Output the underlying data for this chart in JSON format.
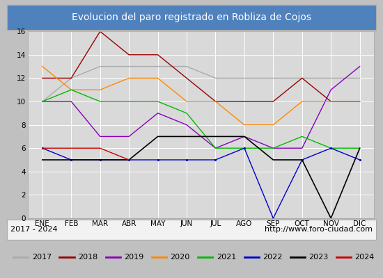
{
  "title": "Evolucion del paro registrado en Robliza de Cojos",
  "subtitle_left": "2017 - 2024",
  "subtitle_right": "http://www.foro-ciudad.com",
  "months": [
    "ENE",
    "FEB",
    "MAR",
    "ABR",
    "MAY",
    "JUN",
    "JUL",
    "AGO",
    "SEP",
    "OCT",
    "NOV",
    "DIC"
  ],
  "series": {
    "2017": {
      "data": [
        10,
        12,
        13,
        13,
        13,
        13,
        12,
        12,
        12,
        12,
        12,
        12
      ],
      "color": "#aaaaaa",
      "linewidth": 1.0
    },
    "2018": {
      "data": [
        12,
        12,
        16,
        14,
        14,
        12,
        10,
        10,
        10,
        12,
        10,
        10
      ],
      "color": "#990000",
      "linewidth": 1.0
    },
    "2019": {
      "data": [
        10,
        10,
        7,
        7,
        9,
        8,
        6,
        7,
        6,
        6,
        11,
        13
      ],
      "color": "#8800bb",
      "linewidth": 1.0
    },
    "2020": {
      "data": [
        13,
        11,
        11,
        12,
        12,
        10,
        10,
        8,
        8,
        10,
        10,
        10
      ],
      "color": "#ff8800",
      "linewidth": 1.0
    },
    "2021": {
      "data": [
        10,
        11,
        10,
        10,
        10,
        9,
        6,
        6,
        6,
        7,
        6,
        6
      ],
      "color": "#00bb00",
      "linewidth": 1.0
    },
    "2022": {
      "data": [
        6,
        5,
        5,
        5,
        5,
        5,
        5,
        6,
        0,
        5,
        6,
        5
      ],
      "color": "#0000cc",
      "linewidth": 1.0,
      "marker": "."
    },
    "2023": {
      "data": [
        5,
        5,
        5,
        5,
        7,
        7,
        7,
        7,
        5,
        5,
        0,
        6
      ],
      "color": "#000000",
      "linewidth": 1.2
    },
    "2024": {
      "data": [
        6,
        6,
        6,
        5,
        null,
        null,
        null,
        null,
        null,
        null,
        null,
        null
      ],
      "color": "#cc0000",
      "linewidth": 1.0
    }
  },
  "ylim": [
    0,
    16
  ],
  "yticks": [
    0,
    2,
    4,
    6,
    8,
    10,
    12,
    14,
    16
  ],
  "title_bg_color": "#4f81bd",
  "title_color": "#ffffff",
  "subtitle_bg_color": "#f2f2f2",
  "plot_bg_color": "#d9d9d9",
  "legend_bg_color": "#f2f2f2",
  "grid_color": "#ffffff",
  "border_color": "#aaaaaa",
  "title_fontsize": 10,
  "subtitle_fontsize": 8,
  "tick_fontsize": 7.5,
  "legend_fontsize": 8
}
